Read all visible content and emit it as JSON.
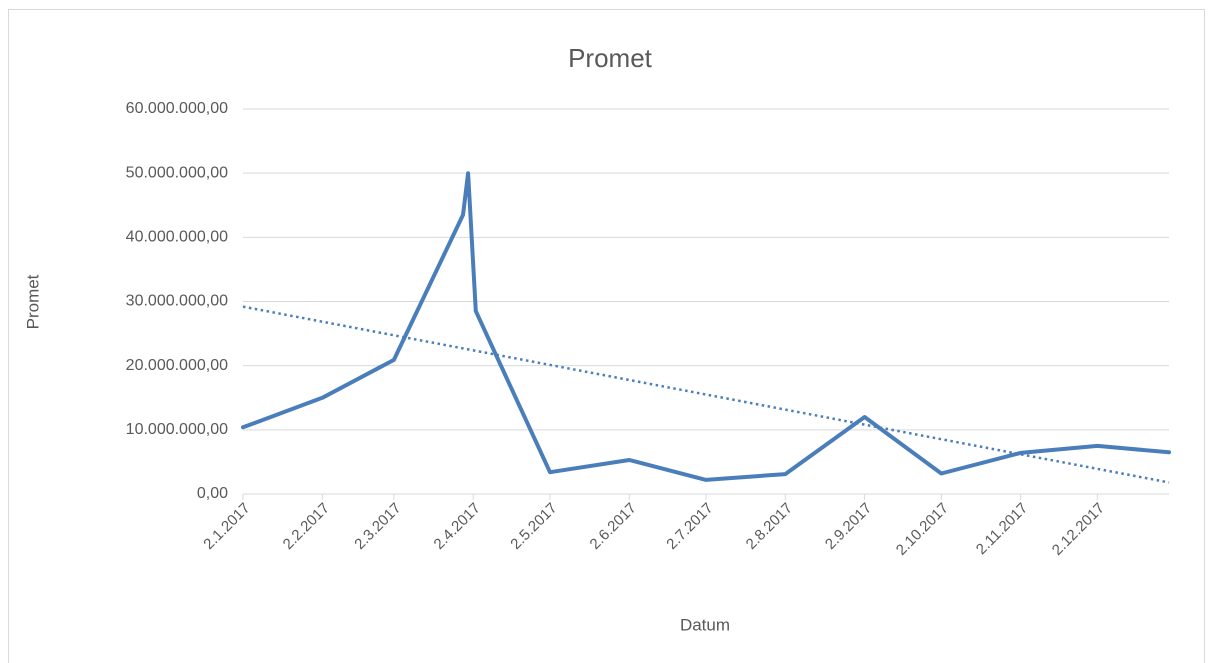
{
  "chart_data": {
    "type": "line",
    "title": "Promet",
    "x_label": "Datum",
    "y_label": "Promet",
    "x": [
      "2017-01-02",
      "2017-02-02",
      "2017-03-02",
      "2017-03-29",
      "2017-03-31",
      "2017-04-03",
      "2017-05-02",
      "2017-06-02",
      "2017-07-02",
      "2017-08-02",
      "2017-09-02",
      "2017-10-02",
      "2017-11-02",
      "2017-12-02",
      "2017-12-30"
    ],
    "series": [
      {
        "name": "Promet",
        "color": "#4a7ebb",
        "values": [
          10400000,
          15000000,
          20900000,
          43500000,
          50000000,
          28500000,
          3400000,
          5300000,
          2200000,
          3100000,
          12000000,
          3200000,
          6400000,
          7500000,
          6500000
        ]
      }
    ],
    "trendline": {
      "x": [
        "2017-01-02",
        "2017-12-30"
      ],
      "values": [
        29200000,
        1800000
      ],
      "color": "#4a7ebb",
      "style": "dotted"
    },
    "xlim": [
      "2017-01-02",
      "2017-12-30"
    ],
    "xticks": [
      {
        "value": "2017-01-02",
        "label": "2.1.2017"
      },
      {
        "value": "2017-02-02",
        "label": "2.2.2017"
      },
      {
        "value": "2017-03-02",
        "label": "2.3.2017"
      },
      {
        "value": "2017-04-02",
        "label": "2.4.2017"
      },
      {
        "value": "2017-05-02",
        "label": "2.5.2017"
      },
      {
        "value": "2017-06-02",
        "label": "2.6.2017"
      },
      {
        "value": "2017-07-02",
        "label": "2.7.2017"
      },
      {
        "value": "2017-08-02",
        "label": "2.8.2017"
      },
      {
        "value": "2017-09-02",
        "label": "2.9.2017"
      },
      {
        "value": "2017-10-02",
        "label": "2.10.2017"
      },
      {
        "value": "2017-11-02",
        "label": "2.11.2017"
      },
      {
        "value": "2017-12-02",
        "label": "2.12.2017"
      }
    ],
    "ylim": [
      0,
      60000000
    ],
    "yticks": [
      {
        "value": 0,
        "label": "0,00"
      },
      {
        "value": 10000000,
        "label": "10.000.000,00"
      },
      {
        "value": 20000000,
        "label": "20.000.000,00"
      },
      {
        "value": 30000000,
        "label": "30.000.000,00"
      },
      {
        "value": 40000000,
        "label": "40.000.000,00"
      },
      {
        "value": 50000000,
        "label": "50.000.000,00"
      },
      {
        "value": 60000000,
        "label": "60.000.000,00"
      }
    ],
    "grid": true
  }
}
